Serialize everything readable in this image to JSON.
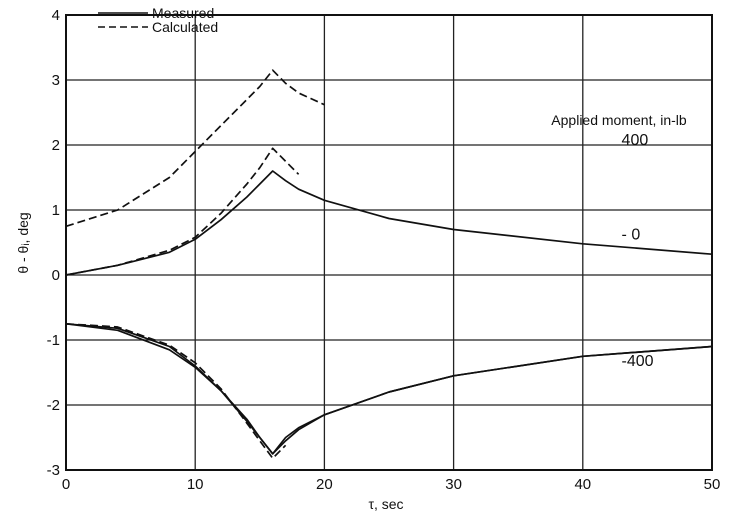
{
  "chart_data": {
    "type": "line",
    "xlabel": "τ, sec",
    "ylabel": "θ - θᵢ, deg",
    "xlim": [
      0,
      50
    ],
    "ylim": [
      -3,
      4
    ],
    "xticks": [
      "0",
      "10",
      "20",
      "30",
      "40",
      "50"
    ],
    "yticks": [
      "-3",
      "-2",
      "-1",
      "0",
      "1",
      "2",
      "3",
      "4"
    ],
    "grid": true,
    "legend": {
      "placement": "top-left",
      "entries": [
        {
          "label": "Measured",
          "style": "solid"
        },
        {
          "label": "Calculated",
          "style": "dashed"
        }
      ]
    },
    "annotations": {
      "header": "Applied moment, in-lb",
      "values": [
        {
          "key": "p400",
          "label": "400",
          "x": 43,
          "y": 2.0
        },
        {
          "key": "p0",
          "label": "- 0",
          "x": 43,
          "y": 0.55
        },
        {
          "key": "m400",
          "label": "-400",
          "x": 43,
          "y": -1.4
        }
      ]
    },
    "series": [
      {
        "key": "m400",
        "style": "solid",
        "color": "#111111",
        "x": [
          0,
          4,
          8,
          10,
          12,
          14,
          15,
          16,
          17,
          18,
          20,
          25,
          30,
          40,
          50
        ],
        "y": [
          -0.75,
          -0.85,
          -1.15,
          -1.42,
          -1.78,
          -2.22,
          -2.5,
          -2.75,
          -2.5,
          -2.35,
          -2.15,
          -1.8,
          -1.55,
          -1.25,
          -1.1
        ]
      },
      {
        "key": "c400",
        "style": "dashed",
        "color": "#111111",
        "x": [
          0,
          4,
          8,
          10,
          12,
          14,
          15,
          16,
          17,
          18,
          20
        ],
        "y": [
          0.75,
          1.0,
          1.5,
          1.9,
          2.3,
          2.7,
          2.9,
          3.15,
          2.95,
          2.8,
          2.62
        ]
      },
      {
        "key": "m0",
        "style": "solid",
        "color": "#111111",
        "x": [
          0,
          4,
          8,
          10,
          12,
          14,
          15,
          16,
          17,
          18,
          20,
          25,
          30,
          40,
          50
        ],
        "y": [
          0,
          0.15,
          0.35,
          0.55,
          0.85,
          1.2,
          1.4,
          1.6,
          1.45,
          1.32,
          1.15,
          0.87,
          0.7,
          0.48,
          0.32
        ]
      },
      {
        "key": "c0",
        "style": "dashed",
        "color": "#111111",
        "x": [
          0,
          4,
          8,
          10,
          12,
          14,
          15,
          16,
          17,
          18
        ],
        "y": [
          0,
          0.15,
          0.38,
          0.58,
          0.95,
          1.4,
          1.65,
          1.95,
          1.75,
          1.55
        ]
      },
      {
        "key": "m400n",
        "style": "solid",
        "color": "#111111",
        "x": [
          0,
          4,
          8,
          10,
          12,
          14,
          15,
          16,
          17,
          18,
          20,
          25,
          30,
          40,
          50
        ],
        "y": [
          -0.75,
          -0.82,
          -1.1,
          -1.4,
          -1.78,
          -2.25,
          -2.5,
          -2.75,
          -2.55,
          -2.38,
          -2.15,
          -1.8,
          -1.55,
          -1.25,
          -1.1
        ]
      },
      {
        "key": "c400n",
        "style": "dashed",
        "color": "#111111",
        "x": [
          0,
          4,
          8,
          10,
          12,
          14,
          15,
          16,
          17
        ],
        "y": [
          -0.75,
          -0.8,
          -1.08,
          -1.35,
          -1.75,
          -2.28,
          -2.55,
          -2.82,
          -2.62
        ]
      }
    ]
  }
}
